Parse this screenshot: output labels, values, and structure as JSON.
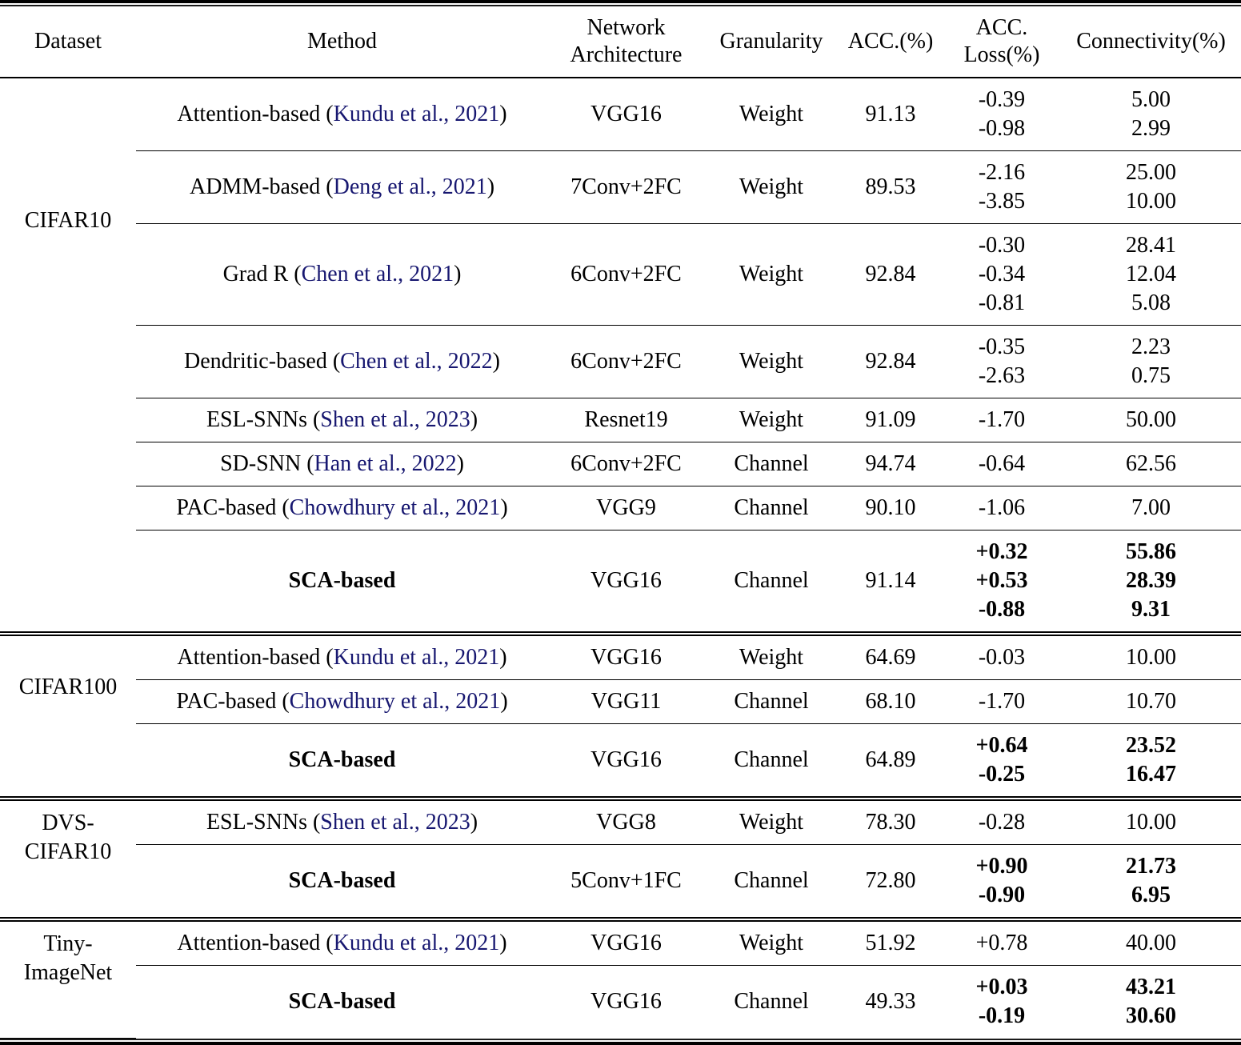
{
  "table": {
    "citation_color": "#171770",
    "headers": {
      "dataset": "Dataset",
      "method": "Method",
      "arch_line1": "Network",
      "arch_line2": "Architecture",
      "granularity": "Granularity",
      "acc": "ACC.(%)",
      "loss_line1": "ACC.",
      "loss_line2": "Loss(%)",
      "connectivity": "Connectivity(%)"
    },
    "sections": [
      {
        "dataset_lines": [
          "CIFAR10"
        ],
        "pad_class": "pad-cifar10",
        "rows": [
          {
            "method_pre": "Attention-based (",
            "citation": "Kundu et al., 2021",
            "method_post": ")",
            "bold": false,
            "arch": "VGG16",
            "granularity": "Weight",
            "acc": "91.13",
            "loss": [
              "-0.39",
              "-0.98"
            ],
            "conn": [
              "5.00",
              "2.99"
            ]
          },
          {
            "method_pre": "ADMM-based (",
            "citation": "Deng et al., 2021",
            "method_post": ")",
            "bold": false,
            "arch": "7Conv+2FC",
            "granularity": "Weight",
            "acc": "89.53",
            "loss": [
              "-2.16",
              "-3.85"
            ],
            "conn": [
              "25.00",
              "10.00"
            ]
          },
          {
            "method_pre": "Grad R (",
            "citation": "Chen et al., 2021",
            "method_post": ")",
            "bold": false,
            "arch": "6Conv+2FC",
            "granularity": "Weight",
            "acc": "92.84",
            "loss": [
              "-0.30",
              "-0.34",
              "-0.81"
            ],
            "conn": [
              "28.41",
              "12.04",
              "5.08"
            ]
          },
          {
            "method_pre": "Dendritic-based (",
            "citation": "Chen et al., 2022",
            "method_post": ")",
            "bold": false,
            "arch": "6Conv+2FC",
            "granularity": "Weight",
            "acc": "92.84",
            "loss": [
              "-0.35",
              "-2.63"
            ],
            "conn": [
              "2.23",
              "0.75"
            ]
          },
          {
            "method_pre": "ESL-SNNs (",
            "citation": "Shen et al., 2023",
            "method_post": ")",
            "bold": false,
            "arch": "Resnet19",
            "granularity": "Weight",
            "acc": "91.09",
            "loss": [
              "-1.70"
            ],
            "conn": [
              "50.00"
            ]
          },
          {
            "method_pre": "SD-SNN (",
            "citation": "Han et al., 2022",
            "method_post": ")",
            "bold": false,
            "arch": "6Conv+2FC",
            "granularity": "Channel",
            "acc": "94.74",
            "loss": [
              "-0.64"
            ],
            "conn": [
              "62.56"
            ]
          },
          {
            "method_pre": "PAC-based (",
            "citation": "Chowdhury et al., 2021",
            "method_post": ")",
            "bold": false,
            "arch": "VGG9",
            "granularity": "Channel",
            "acc": "90.10",
            "loss": [
              "-1.06"
            ],
            "conn": [
              "7.00"
            ]
          },
          {
            "method_pre": "SCA-based",
            "citation": null,
            "method_post": "",
            "bold": true,
            "arch": "VGG16",
            "granularity": "Channel",
            "acc": "91.14",
            "loss": [
              "+0.32",
              "+0.53",
              "-0.88"
            ],
            "conn": [
              "55.86",
              "28.39",
              "9.31"
            ]
          }
        ]
      },
      {
        "dataset_lines": [
          "CIFAR100"
        ],
        "pad_class": "pad-cifar100",
        "rows": [
          {
            "method_pre": "Attention-based (",
            "citation": "Kundu et al., 2021",
            "method_post": ")",
            "bold": false,
            "arch": "VGG16",
            "granularity": "Weight",
            "acc": "64.69",
            "loss": [
              "-0.03"
            ],
            "conn": [
              "10.00"
            ]
          },
          {
            "method_pre": "PAC-based (",
            "citation": "Chowdhury et al., 2021",
            "method_post": ")",
            "bold": false,
            "arch": "VGG11",
            "granularity": "Channel",
            "acc": "68.10",
            "loss": [
              "-1.70"
            ],
            "conn": [
              "10.70"
            ]
          },
          {
            "method_pre": "SCA-based",
            "citation": null,
            "method_post": "",
            "bold": true,
            "arch": "VGG16",
            "granularity": "Channel",
            "acc": "64.89",
            "loss": [
              "+0.64",
              "-0.25"
            ],
            "conn": [
              "23.52",
              "16.47"
            ]
          }
        ]
      },
      {
        "dataset_lines": [
          "DVS-",
          "CIFAR10"
        ],
        "pad_class": "pad-dvs",
        "rows": [
          {
            "method_pre": "ESL-SNNs (",
            "citation": "Shen et al., 2023",
            "method_post": ")",
            "bold": false,
            "arch": "VGG8",
            "granularity": "Weight",
            "acc": "78.30",
            "loss": [
              "-0.28"
            ],
            "conn": [
              "10.00"
            ]
          },
          {
            "method_pre": "SCA-based",
            "citation": null,
            "method_post": "",
            "bold": true,
            "arch": "5Conv+1FC",
            "granularity": "Channel",
            "acc": "72.80",
            "loss": [
              "+0.90",
              "-0.90"
            ],
            "conn": [
              "21.73",
              "6.95"
            ]
          }
        ]
      },
      {
        "dataset_lines": [
          "Tiny-",
          "ImageNet"
        ],
        "pad_class": "pad-tiny",
        "rows": [
          {
            "method_pre": "Attention-based (",
            "citation": "Kundu et al., 2021",
            "method_post": ")",
            "bold": false,
            "arch": "VGG16",
            "granularity": "Weight",
            "acc": "51.92",
            "loss": [
              "+0.78"
            ],
            "conn": [
              "40.00"
            ]
          },
          {
            "method_pre": "SCA-based",
            "citation": null,
            "method_post": "",
            "bold": true,
            "arch": "VGG16",
            "granularity": "Channel",
            "acc": "49.33",
            "loss": [
              "+0.03",
              "-0.19"
            ],
            "conn": [
              "43.21",
              "30.60"
            ]
          }
        ]
      }
    ]
  }
}
